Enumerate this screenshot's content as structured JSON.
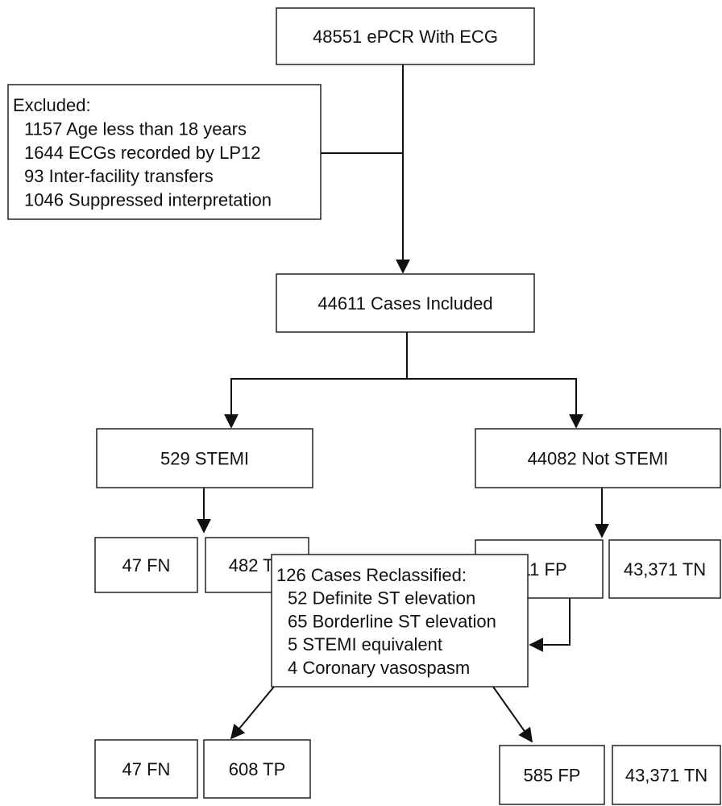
{
  "nodes": [
    {
      "label": "48551 ePCR With ECG"
    },
    {
      "title": "Excluded:",
      "items": [
        "1157 Age less than 18 years",
        "1644 ECGs recorded by LP12",
        "93 Inter-facility transfers",
        "1046 Suppressed interpretation"
      ]
    },
    {
      "label": "44611 Cases Included"
    },
    {
      "label": "529 STEMI"
    },
    {
      "label": "44082 Not STEMI"
    },
    {
      "label": "47 FN"
    },
    {
      "label": "482 TP"
    },
    {
      "label": "711 FP"
    },
    {
      "label": "43,371 TN"
    },
    {
      "title": "126 Cases Reclassified:",
      "items": [
        "52 Definite ST elevation",
        "65 Borderline ST elevation",
        "5 STEMI equivalent",
        "4 Coronary vasospasm"
      ]
    },
    {
      "label": "47 FN"
    },
    {
      "label": "608 TP"
    },
    {
      "label": "585 FP"
    },
    {
      "label": "43,371 TN"
    }
  ]
}
